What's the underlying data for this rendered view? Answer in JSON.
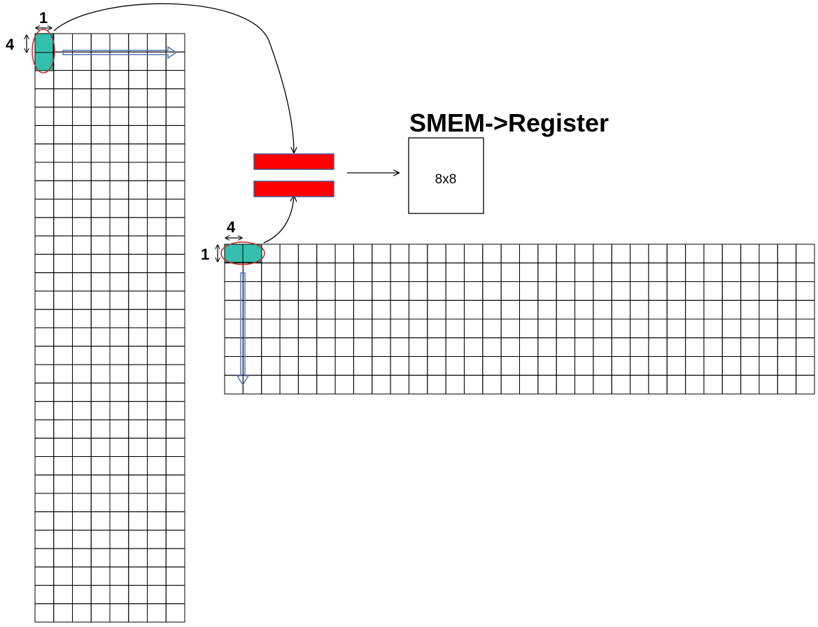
{
  "title": "SMEM->Register",
  "result_box": {
    "label": "8x8"
  },
  "matrix_a": {
    "rows": 32,
    "cols": 8,
    "tile_width_label": "1",
    "tile_height_label": "4"
  },
  "matrix_b": {
    "rows": 8,
    "cols": 32,
    "tile_width_label": "4",
    "tile_height_label": "1"
  },
  "colors": {
    "tile": "#33bfae",
    "selection_ellipse": "#c0282d",
    "register_bar": "#ff0000",
    "register_bar_border": "#4a5a8c",
    "direction_arrow": "#4f74b3",
    "grid": "#000000"
  }
}
